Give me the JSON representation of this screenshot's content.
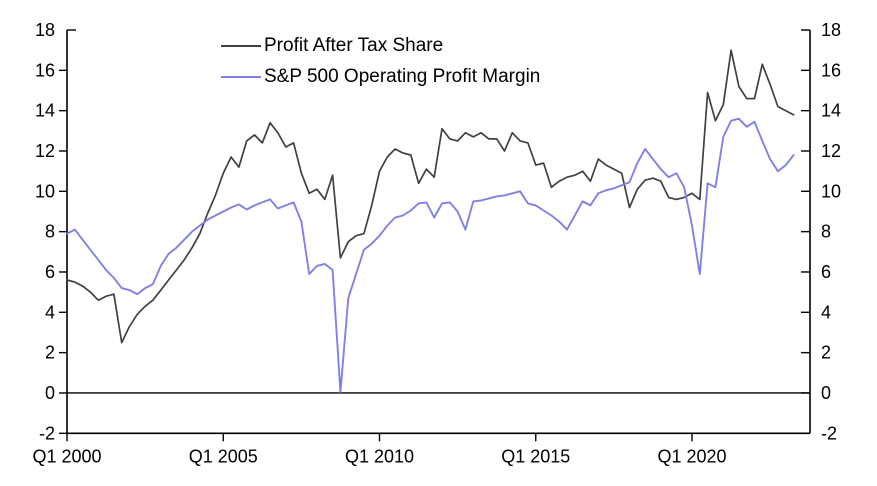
{
  "chart_data": {
    "type": "line",
    "title": "",
    "x_start": "Q1 2000",
    "x_frequency": "quarterly",
    "x_tick_labels": [
      "Q1 2000",
      "Q1 2005",
      "Q1 2010",
      "Q1 2015",
      "Q1 2020"
    ],
    "x_tick_quarter_index": [
      0,
      20,
      40,
      60,
      80
    ],
    "ylim": [
      -2,
      18
    ],
    "y_tick_step": 2,
    "y_axis_both_sides": true,
    "zero_line": true,
    "grid": false,
    "legend_position": "top-center-inside",
    "series": [
      {
        "name": "Profit After Tax Share",
        "color": "#404040",
        "values": [
          5.6,
          5.5,
          5.3,
          5.0,
          4.6,
          4.8,
          4.9,
          2.5,
          3.3,
          3.9,
          4.3,
          4.6,
          5.1,
          5.6,
          6.1,
          6.6,
          7.2,
          7.9,
          8.9,
          9.8,
          10.9,
          11.7,
          11.2,
          12.5,
          12.8,
          12.4,
          13.4,
          12.9,
          12.2,
          12.4,
          10.9,
          9.9,
          10.1,
          9.6,
          10.8,
          6.7,
          7.5,
          7.8,
          7.9,
          9.3,
          11.0,
          11.7,
          12.1,
          11.9,
          11.8,
          10.4,
          11.1,
          10.7,
          13.1,
          12.6,
          12.5,
          12.9,
          12.7,
          12.9,
          12.6,
          12.6,
          12.0,
          12.9,
          12.5,
          12.4,
          11.3,
          11.4,
          10.2,
          10.5,
          10.7,
          10.8,
          11.0,
          10.5,
          11.6,
          11.3,
          11.1,
          10.9,
          9.2,
          10.1,
          10.55,
          10.65,
          10.5,
          9.7,
          9.6,
          9.7,
          9.9,
          9.6,
          14.9,
          13.5,
          14.3,
          17.0,
          15.2,
          14.6,
          14.6,
          16.3,
          15.3,
          14.2,
          14.0,
          13.8
        ]
      },
      {
        "name": "S&P 500 Operating Profit Margin",
        "color": "#8080E6",
        "values": [
          7.9,
          8.1,
          7.6,
          7.1,
          6.6,
          6.1,
          5.7,
          5.2,
          5.1,
          4.9,
          5.2,
          5.4,
          6.3,
          6.9,
          7.2,
          7.6,
          8.0,
          8.3,
          8.6,
          8.8,
          9.0,
          9.2,
          9.35,
          9.1,
          9.3,
          9.45,
          9.6,
          9.15,
          9.3,
          9.45,
          8.5,
          5.9,
          6.3,
          6.4,
          6.1,
          0.05,
          4.7,
          5.9,
          7.1,
          7.4,
          7.8,
          8.3,
          8.7,
          8.8,
          9.05,
          9.4,
          9.45,
          8.7,
          9.4,
          9.45,
          9.0,
          8.1,
          9.5,
          9.55,
          9.65,
          9.75,
          9.8,
          9.9,
          10.0,
          9.4,
          9.3,
          9.05,
          8.8,
          8.5,
          8.1,
          8.8,
          9.5,
          9.3,
          9.9,
          10.05,
          10.15,
          10.3,
          10.45,
          11.4,
          12.1,
          11.6,
          11.1,
          10.7,
          10.9,
          10.2,
          8.3,
          5.9,
          10.4,
          10.2,
          12.7,
          13.5,
          13.6,
          13.2,
          13.45,
          12.5,
          11.6,
          11.0,
          11.3,
          11.8
        ]
      }
    ]
  }
}
